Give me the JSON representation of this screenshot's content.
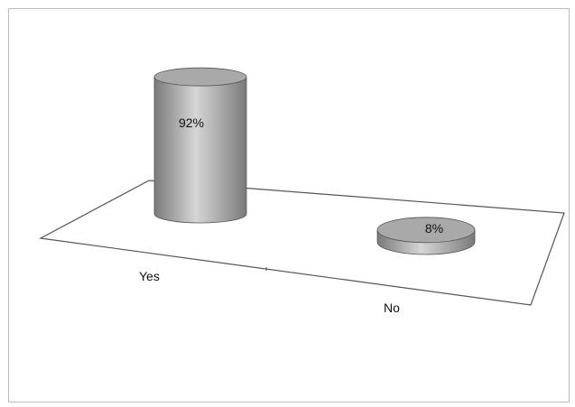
{
  "chart_data": {
    "type": "bar",
    "style": "3d-cylinder",
    "categories": [
      "Yes",
      "No"
    ],
    "values": [
      92,
      8
    ],
    "data_labels": [
      "92%",
      "8%"
    ],
    "unit": "%",
    "ylim": [
      0,
      100
    ],
    "title": "",
    "xlabel": "",
    "ylabel": "",
    "grid": false,
    "legend": "none",
    "colors": {
      "cylinder_dark": "#7a7a7a",
      "cylinder_light": "#d6d6d6",
      "cylinder_top": "#a9a9a9",
      "floor_line": "#555555",
      "frame": "#bdbdbd"
    }
  }
}
